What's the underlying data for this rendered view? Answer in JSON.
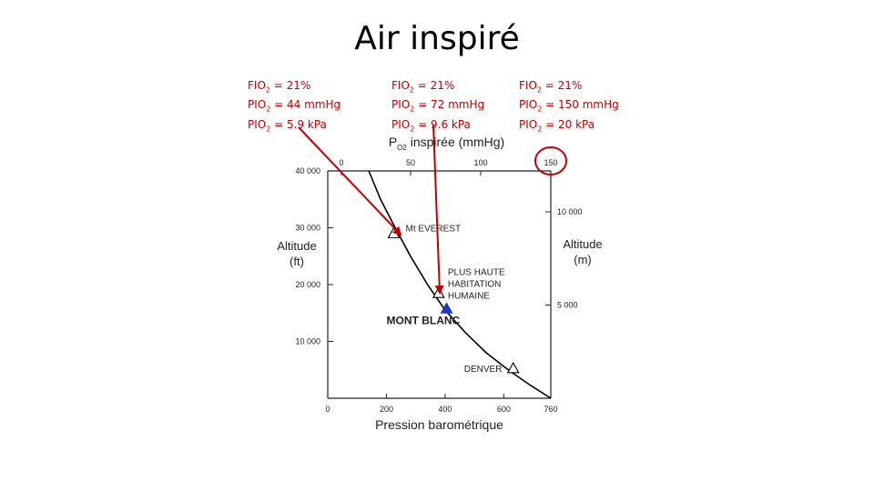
{
  "slide": {
    "title": "Air inspiré"
  },
  "annotations": [
    {
      "name": "everest",
      "lines": [
        "FIO2 = 21%",
        "PIO2 = 44 mmHg",
        "PIO2 = 5.9 kPa"
      ]
    },
    {
      "name": "habitation",
      "lines": [
        "FIO2 = 21%",
        "PIO2 = 72 mmHg",
        "PIO2 = 9.6 kPa"
      ]
    },
    {
      "name": "sea-level",
      "lines": [
        "FIO2 = 21%",
        "PIO2 = 150 mmHg",
        "PIO2 = 20 kPa"
      ]
    }
  ],
  "colors": {
    "annotation": "#c00000",
    "curve": "#000000",
    "mont_blanc": "#1f33c8",
    "landmark_outline": "#000000"
  },
  "chart_data": {
    "type": "line",
    "xlabel_bottom": "Pression barométrique",
    "xlabel_top": "PO2 inspirée (mmHg)",
    "ylabel_left": "Altitude (ft)",
    "ylabel_right": "Altitude (m)",
    "xlim": [
      0,
      760
    ],
    "ylim_ft": [
      0,
      40000
    ],
    "bottom_ticks": [
      {
        "value": 0,
        "label": "0"
      },
      {
        "value": 200,
        "label": "200"
      },
      {
        "value": 400,
        "label": "400"
      },
      {
        "value": 600,
        "label": "600"
      },
      {
        "value": 760,
        "label": "760"
      }
    ],
    "top_ticks": [
      {
        "value": 0,
        "label": "0"
      },
      {
        "value": 50,
        "label": "50"
      },
      {
        "value": 100,
        "label": "100"
      },
      {
        "value": 150,
        "label": "150"
      }
    ],
    "left_ticks": [
      {
        "value": 10000,
        "label": "10 000"
      },
      {
        "value": 20000,
        "label": "20 000"
      },
      {
        "value": 30000,
        "label": "30 000"
      },
      {
        "value": 40000,
        "label": "40 000"
      }
    ],
    "right_ticks": [
      {
        "value": 5000,
        "label": "5 000"
      },
      {
        "value": 10000,
        "label": "10 000"
      }
    ],
    "series": [
      {
        "x": [
          140,
          180,
          230,
          282,
          340,
          400,
          470,
          540,
          620,
          690,
          760
        ],
        "y": [
          40000,
          35000,
          30000,
          25000,
          20000,
          15500,
          11500,
          8000,
          4800,
          2300,
          0
        ]
      }
    ],
    "landmarks": [
      {
        "label": "Mt EVEREST",
        "x": 225,
        "y": 29029,
        "marker": "open-triangle"
      },
      {
        "label": [
          "PLUS HAUTE",
          "HABITATION",
          "HUMAINE"
        ],
        "x": 378,
        "y": 18500,
        "marker": "open-triangle"
      },
      {
        "label": "MONT BLANC",
        "x": 405,
        "y": 15780,
        "marker": "filled-triangle"
      },
      {
        "label": "DENVER",
        "x": 632,
        "y": 5280,
        "marker": "open-triangle"
      }
    ]
  }
}
